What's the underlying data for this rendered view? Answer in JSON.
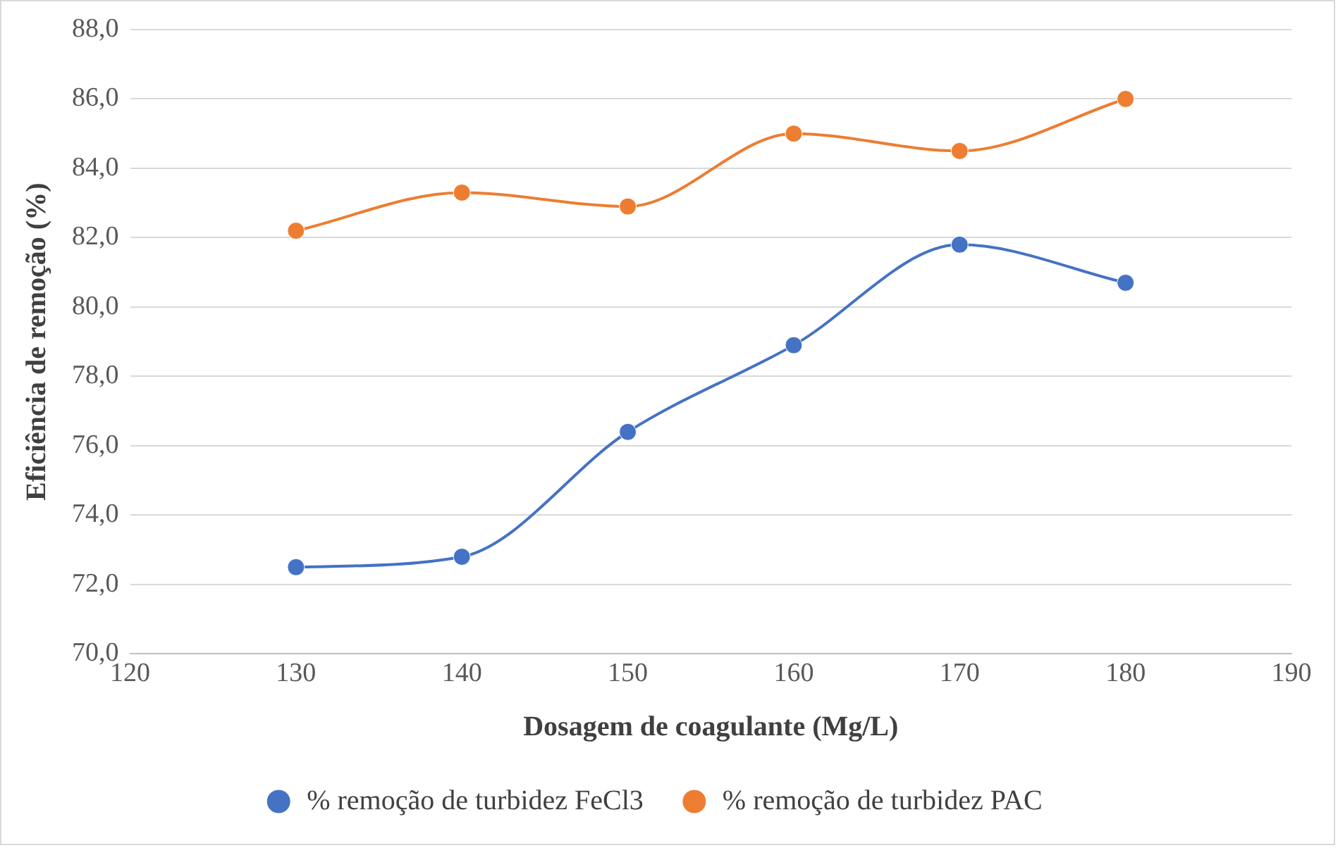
{
  "chart_data": {
    "type": "line",
    "xlabel": "Dosagem de coagulante (Mg/L)",
    "ylabel": "Eficiência de remoção (%)",
    "x": [
      130,
      140,
      150,
      160,
      170,
      180
    ],
    "series": [
      {
        "name": "% remoção de turbidez FeCl3",
        "color": "#4472c4",
        "values": [
          72.5,
          72.8,
          76.4,
          78.9,
          81.8,
          80.7
        ]
      },
      {
        "name": "% remoção de turbidez PAC",
        "color": "#ed7d31",
        "values": [
          82.2,
          83.3,
          82.9,
          85.0,
          84.5,
          86.0
        ]
      }
    ],
    "xlim": [
      120,
      190
    ],
    "xticks": [
      120,
      130,
      140,
      150,
      160,
      170,
      180,
      190
    ],
    "ylim": [
      70,
      88
    ],
    "yticks": [
      {
        "value": 70,
        "label": "70,0"
      },
      {
        "value": 72,
        "label": "72,0"
      },
      {
        "value": 74,
        "label": "74,0"
      },
      {
        "value": 76,
        "label": "76,0"
      },
      {
        "value": 78,
        "label": "78,0"
      },
      {
        "value": 80,
        "label": "80,0"
      },
      {
        "value": 82,
        "label": "82,0"
      },
      {
        "value": 84,
        "label": "84,0"
      },
      {
        "value": 86,
        "label": "86,0"
      },
      {
        "value": 88,
        "label": "88,0"
      }
    ],
    "grid": "y",
    "legend": "bottom",
    "marker": "circle",
    "line_style": "solid"
  }
}
